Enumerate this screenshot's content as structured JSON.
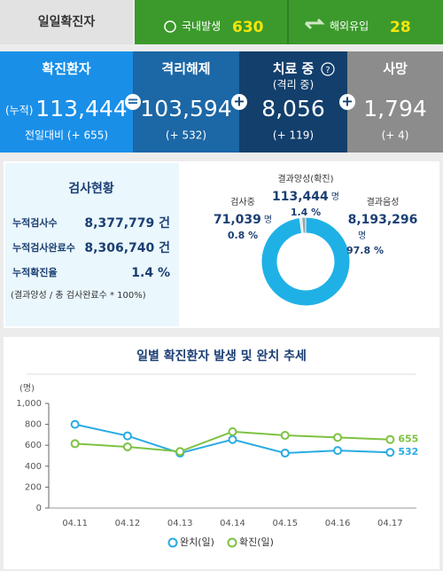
{
  "header": {
    "title": "일일확진자",
    "items": [
      {
        "label": "국내발생",
        "value": 630
      },
      {
        "label": "해외유입",
        "value": 28
      }
    ]
  },
  "stats": [
    {
      "label": "확진환자",
      "prefix": "(누적)",
      "value": "113,444",
      "change": "전일대비 (+ 655)"
    },
    {
      "label": "격리해제",
      "value": "103,594",
      "change": "(+ 532)"
    },
    {
      "label": "치료 중",
      "sublabel": "(격리 중)",
      "value": "8,056",
      "change": "(+ 119)"
    },
    {
      "label": "사망",
      "value": "1,794",
      "change": "(+ 4)"
    }
  ],
  "tests": {
    "title": "검사현황",
    "rows": [
      [
        "누적검사수",
        "8,377,779 건"
      ],
      [
        "누적검사완료수",
        "8,306,740 건"
      ],
      [
        "누적확진율",
        "1.4 %"
      ]
    ],
    "note": "(결과양성 / 총 검사완료수 * 100%)"
  },
  "chart_data": [
    {
      "type": "pie",
      "categories": [
        "검사중",
        "결과양성(확진)",
        "결과음성"
      ],
      "values": [
        0.8,
        1.4,
        97.8
      ],
      "value_labels": [
        "0.8 %",
        "1.4 %",
        "97.8 %"
      ],
      "counts": [
        "71,039",
        "113,444",
        "8,193,296"
      ],
      "unit": "명",
      "colors": [
        "#d5dde2",
        "#9aa3a8",
        "#1fb1e6"
      ]
    },
    {
      "type": "line",
      "title": "일별 확진환자 발생 및 완치 추세",
      "ylabel": "(명)",
      "categories": [
        "04.11",
        "04.12",
        "04.13",
        "04.14",
        "04.15",
        "04.16",
        "04.17"
      ],
      "series": [
        {
          "name": "완치(일)",
          "color": "#29abe2",
          "values": [
            800,
            690,
            525,
            655,
            525,
            550,
            532
          ],
          "value_labels": [
            null,
            null,
            null,
            null,
            null,
            null,
            "532"
          ]
        },
        {
          "name": "확진(일)",
          "color": "#7dc242",
          "values": [
            615,
            585,
            540,
            730,
            695,
            675,
            655
          ],
          "value_labels": [
            null,
            null,
            null,
            null,
            null,
            null,
            "655"
          ]
        }
      ],
      "ylim": [
        0,
        1000
      ],
      "yticks": [
        0,
        200,
        400,
        600,
        800,
        {
          "value": 1000,
          "label": "1,000"
        }
      ],
      "grid": false,
      "legend": "bottom"
    }
  ]
}
